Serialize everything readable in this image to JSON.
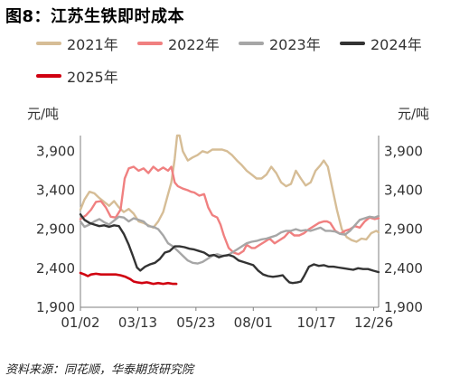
{
  "title": "图8：江苏生铁即时成本",
  "source": "资料来源：同花顺，华泰期货研究院",
  "chart_data": {
    "type": "line",
    "unit_left": "元/吨",
    "unit_right": "元/吨",
    "ylim": [
      1900,
      4100
    ],
    "yticks": [
      1900,
      2400,
      2900,
      3400,
      3900
    ],
    "ytick_labels": [
      "1,900",
      "2,400",
      "2,900",
      "3,400",
      "3,900"
    ],
    "xlim": [
      1,
      365
    ],
    "xticks": [
      {
        "day": 1,
        "label": "01/02"
      },
      {
        "day": 71,
        "label": "03/13"
      },
      {
        "day": 142,
        "label": "05/23"
      },
      {
        "day": 212,
        "label": "08/01"
      },
      {
        "day": 289,
        "label": "10/17"
      },
      {
        "day": 359,
        "label": "12/26"
      }
    ],
    "grid": false,
    "legend_position": "top",
    "series": [
      {
        "name": "2021年",
        "color": "#D6BD96",
        "points": [
          [
            1,
            3150
          ],
          [
            6,
            3280
          ],
          [
            12,
            3380
          ],
          [
            18,
            3360
          ],
          [
            24,
            3300
          ],
          [
            30,
            3250
          ],
          [
            36,
            3200
          ],
          [
            42,
            3260
          ],
          [
            48,
            3180
          ],
          [
            54,
            3120
          ],
          [
            60,
            3160
          ],
          [
            66,
            3100
          ],
          [
            72,
            3000
          ],
          [
            78,
            2980
          ],
          [
            84,
            2950
          ],
          [
            90,
            2920
          ],
          [
            96,
            3000
          ],
          [
            102,
            3120
          ],
          [
            108,
            3350
          ],
          [
            112,
            3500
          ],
          [
            116,
            3800
          ],
          [
            119,
            4100
          ],
          [
            122,
            4100
          ],
          [
            126,
            3900
          ],
          [
            132,
            3780
          ],
          [
            138,
            3820
          ],
          [
            144,
            3850
          ],
          [
            150,
            3900
          ],
          [
            156,
            3880
          ],
          [
            162,
            3920
          ],
          [
            168,
            3920
          ],
          [
            174,
            3920
          ],
          [
            180,
            3900
          ],
          [
            186,
            3850
          ],
          [
            192,
            3780
          ],
          [
            198,
            3720
          ],
          [
            204,
            3650
          ],
          [
            210,
            3600
          ],
          [
            216,
            3550
          ],
          [
            222,
            3550
          ],
          [
            228,
            3600
          ],
          [
            234,
            3700
          ],
          [
            240,
            3620
          ],
          [
            246,
            3500
          ],
          [
            252,
            3450
          ],
          [
            258,
            3480
          ],
          [
            264,
            3650
          ],
          [
            270,
            3550
          ],
          [
            276,
            3460
          ],
          [
            282,
            3500
          ],
          [
            288,
            3650
          ],
          [
            294,
            3720
          ],
          [
            298,
            3780
          ],
          [
            303,
            3700
          ],
          [
            308,
            3450
          ],
          [
            314,
            3150
          ],
          [
            320,
            2900
          ],
          [
            326,
            2800
          ],
          [
            332,
            2760
          ],
          [
            338,
            2740
          ],
          [
            344,
            2780
          ],
          [
            350,
            2770
          ],
          [
            356,
            2850
          ],
          [
            362,
            2880
          ],
          [
            365,
            2860
          ]
        ]
      },
      {
        "name": "2022年",
        "color": "#F08080",
        "points": [
          [
            1,
            3030
          ],
          [
            8,
            3080
          ],
          [
            14,
            3150
          ],
          [
            20,
            3250
          ],
          [
            26,
            3260
          ],
          [
            32,
            3180
          ],
          [
            38,
            3060
          ],
          [
            44,
            3050
          ],
          [
            50,
            3150
          ],
          [
            55,
            3550
          ],
          [
            60,
            3680
          ],
          [
            66,
            3700
          ],
          [
            72,
            3650
          ],
          [
            78,
            3680
          ],
          [
            84,
            3620
          ],
          [
            90,
            3700
          ],
          [
            96,
            3650
          ],
          [
            102,
            3690
          ],
          [
            108,
            3650
          ],
          [
            112,
            3700
          ],
          [
            116,
            3500
          ],
          [
            120,
            3450
          ],
          [
            126,
            3420
          ],
          [
            132,
            3400
          ],
          [
            136,
            3380
          ],
          [
            140,
            3370
          ],
          [
            146,
            3330
          ],
          [
            152,
            3350
          ],
          [
            157,
            3180
          ],
          [
            162,
            3080
          ],
          [
            168,
            3050
          ],
          [
            172,
            2960
          ],
          [
            176,
            2820
          ],
          [
            182,
            2660
          ],
          [
            188,
            2600
          ],
          [
            194,
            2580
          ],
          [
            200,
            2620
          ],
          [
            204,
            2700
          ],
          [
            210,
            2660
          ],
          [
            214,
            2660
          ],
          [
            220,
            2700
          ],
          [
            226,
            2740
          ],
          [
            232,
            2780
          ],
          [
            238,
            2720
          ],
          [
            244,
            2760
          ],
          [
            250,
            2800
          ],
          [
            256,
            2870
          ],
          [
            262,
            2820
          ],
          [
            268,
            2820
          ],
          [
            274,
            2850
          ],
          [
            280,
            2900
          ],
          [
            286,
            2940
          ],
          [
            292,
            2980
          ],
          [
            298,
            3000
          ],
          [
            302,
            3000
          ],
          [
            306,
            2980
          ],
          [
            312,
            2880
          ],
          [
            318,
            2840
          ],
          [
            324,
            2880
          ],
          [
            330,
            2900
          ],
          [
            336,
            2940
          ],
          [
            342,
            2920
          ],
          [
            348,
            3000
          ],
          [
            354,
            3050
          ],
          [
            360,
            3030
          ],
          [
            365,
            3040
          ]
        ]
      },
      {
        "name": "2023年",
        "color": "#A6A6A6",
        "points": [
          [
            1,
            3000
          ],
          [
            6,
            2930
          ],
          [
            12,
            2960
          ],
          [
            18,
            3000
          ],
          [
            24,
            3030
          ],
          [
            30,
            2990
          ],
          [
            36,
            2960
          ],
          [
            42,
            3010
          ],
          [
            48,
            3060
          ],
          [
            54,
            3050
          ],
          [
            60,
            3000
          ],
          [
            66,
            3040
          ],
          [
            72,
            3020
          ],
          [
            78,
            3000
          ],
          [
            84,
            2940
          ],
          [
            90,
            2930
          ],
          [
            96,
            2900
          ],
          [
            102,
            2820
          ],
          [
            108,
            2720
          ],
          [
            114,
            2680
          ],
          [
            120,
            2620
          ],
          [
            126,
            2560
          ],
          [
            132,
            2500
          ],
          [
            138,
            2470
          ],
          [
            144,
            2460
          ],
          [
            150,
            2480
          ],
          [
            156,
            2520
          ],
          [
            162,
            2560
          ],
          [
            168,
            2580
          ],
          [
            174,
            2560
          ],
          [
            180,
            2560
          ],
          [
            186,
            2600
          ],
          [
            192,
            2640
          ],
          [
            198,
            2680
          ],
          [
            204,
            2720
          ],
          [
            210,
            2740
          ],
          [
            216,
            2750
          ],
          [
            222,
            2770
          ],
          [
            228,
            2780
          ],
          [
            234,
            2800
          ],
          [
            240,
            2820
          ],
          [
            246,
            2860
          ],
          [
            252,
            2880
          ],
          [
            258,
            2880
          ],
          [
            264,
            2900
          ],
          [
            270,
            2880
          ],
          [
            276,
            2890
          ],
          [
            282,
            2880
          ],
          [
            288,
            2900
          ],
          [
            294,
            2920
          ],
          [
            300,
            2880
          ],
          [
            306,
            2880
          ],
          [
            312,
            2870
          ],
          [
            318,
            2840
          ],
          [
            324,
            2830
          ],
          [
            330,
            2880
          ],
          [
            336,
            2950
          ],
          [
            342,
            3020
          ],
          [
            348,
            3040
          ],
          [
            354,
            3060
          ],
          [
            360,
            3050
          ],
          [
            365,
            3070
          ]
        ]
      },
      {
        "name": "2024年",
        "color": "#333333",
        "points": [
          [
            1,
            3090
          ],
          [
            6,
            3020
          ],
          [
            12,
            2980
          ],
          [
            18,
            2960
          ],
          [
            24,
            2940
          ],
          [
            30,
            2950
          ],
          [
            36,
            2930
          ],
          [
            42,
            2950
          ],
          [
            48,
            2940
          ],
          [
            54,
            2840
          ],
          [
            60,
            2700
          ],
          [
            65,
            2560
          ],
          [
            70,
            2410
          ],
          [
            74,
            2370
          ],
          [
            80,
            2420
          ],
          [
            86,
            2450
          ],
          [
            92,
            2470
          ],
          [
            98,
            2520
          ],
          [
            104,
            2600
          ],
          [
            110,
            2620
          ],
          [
            116,
            2680
          ],
          [
            122,
            2680
          ],
          [
            128,
            2670
          ],
          [
            134,
            2650
          ],
          [
            140,
            2640
          ],
          [
            146,
            2620
          ],
          [
            152,
            2600
          ],
          [
            158,
            2560
          ],
          [
            164,
            2570
          ],
          [
            170,
            2540
          ],
          [
            176,
            2560
          ],
          [
            182,
            2570
          ],
          [
            188,
            2550
          ],
          [
            194,
            2500
          ],
          [
            200,
            2480
          ],
          [
            206,
            2460
          ],
          [
            212,
            2440
          ],
          [
            218,
            2370
          ],
          [
            224,
            2320
          ],
          [
            230,
            2300
          ],
          [
            236,
            2290
          ],
          [
            242,
            2300
          ],
          [
            248,
            2310
          ],
          [
            252,
            2260
          ],
          [
            256,
            2220
          ],
          [
            260,
            2210
          ],
          [
            266,
            2220
          ],
          [
            270,
            2230
          ],
          [
            274,
            2300
          ],
          [
            280,
            2420
          ],
          [
            286,
            2450
          ],
          [
            292,
            2430
          ],
          [
            298,
            2440
          ],
          [
            304,
            2420
          ],
          [
            310,
            2420
          ],
          [
            316,
            2410
          ],
          [
            322,
            2400
          ],
          [
            328,
            2390
          ],
          [
            334,
            2380
          ],
          [
            340,
            2400
          ],
          [
            346,
            2390
          ],
          [
            352,
            2390
          ],
          [
            358,
            2370
          ],
          [
            365,
            2350
          ]
        ]
      },
      {
        "name": "2025年",
        "color": "#D00010",
        "points": [
          [
            1,
            2340
          ],
          [
            6,
            2320
          ],
          [
            10,
            2300
          ],
          [
            14,
            2320
          ],
          [
            20,
            2330
          ],
          [
            26,
            2320
          ],
          [
            32,
            2320
          ],
          [
            38,
            2320
          ],
          [
            44,
            2320
          ],
          [
            50,
            2310
          ],
          [
            56,
            2290
          ],
          [
            62,
            2260
          ],
          [
            66,
            2230
          ],
          [
            70,
            2220
          ],
          [
            76,
            2210
          ],
          [
            82,
            2220
          ],
          [
            86,
            2210
          ],
          [
            90,
            2200
          ],
          [
            96,
            2210
          ],
          [
            102,
            2200
          ],
          [
            108,
            2210
          ],
          [
            114,
            2200
          ],
          [
            118,
            2200
          ]
        ]
      }
    ]
  }
}
